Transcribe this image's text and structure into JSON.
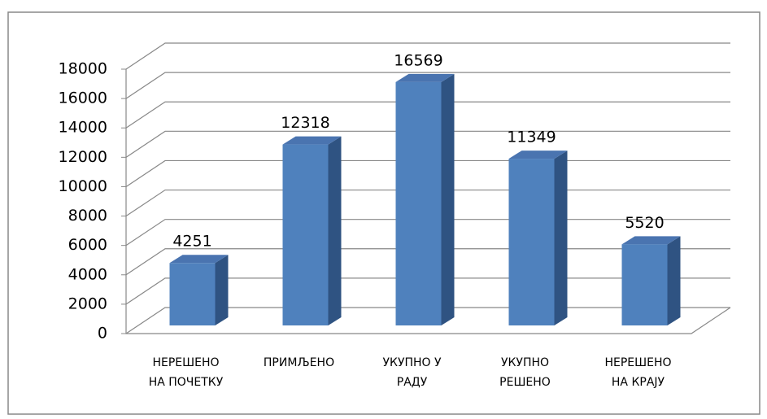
{
  "chart_data": {
    "type": "bar3d",
    "categories": [
      [
        "НЕРЕШЕНО",
        "НА ПОЧЕТКУ"
      ],
      [
        "ПРИМЉЕНО"
      ],
      [
        "УКУПНО У",
        "РАДУ"
      ],
      [
        "УКУПНО",
        "РЕШЕНО"
      ],
      [
        "НЕРЕШЕНО",
        "НА КРАЈУ"
      ]
    ],
    "values": [
      4251,
      12318,
      16569,
      11349,
      5520
    ],
    "color": "#4f81bd",
    "ylim": [
      0,
      18000
    ],
    "yticks": [
      0,
      2000,
      4000,
      6000,
      8000,
      10000,
      12000,
      14000,
      16000,
      18000
    ],
    "grid": true
  }
}
